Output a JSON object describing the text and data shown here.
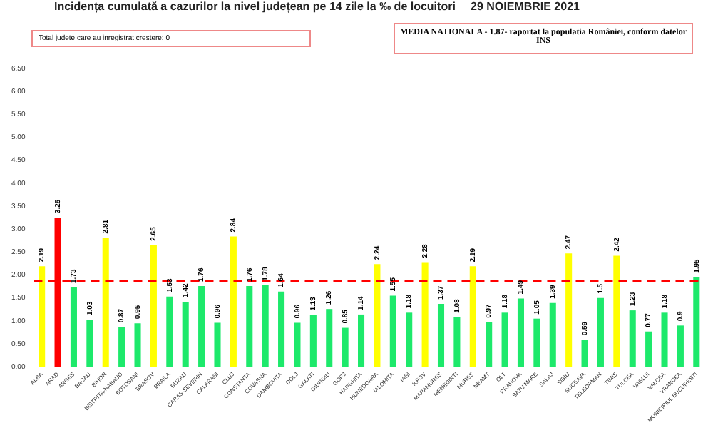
{
  "chart_data": {
    "type": "bar",
    "title": "Incidența cumulată a cazurilor la nivel județean pe 14 zile la ‰ de locuitori",
    "subtitle": "29 NOIEMBRIE 2021",
    "annotations": [
      "Total judete care au inregistrat crestere: 0",
      "MEDIA NATIONALA - 1.87-  raportat la populatia României, conform datelor INS"
    ],
    "categories": [
      "ALBA",
      "ARAD",
      "ARGES",
      "BACAU",
      "BIHOR",
      "BISTRITA-NASAUD",
      "BOTOSANI",
      "BRASOV",
      "BRAILA",
      "BUZAU",
      "CARAS-SEVERIN",
      "CALARASI",
      "CLUJ",
      "CONSTANTA",
      "COVASNA",
      "DAMBOVITA",
      "DOLJ",
      "GALATI",
      "GIURGIU",
      "GORJ",
      "HARGHITA",
      "HUNEDOARA",
      "IALOMITA",
      "IASI",
      "ILFOV",
      "MARAMURES",
      "MEHEDINTI",
      "MURES",
      "NEAMT",
      "OLT",
      "PRAHOVA",
      "SATU MARE",
      "SALAJ",
      "SIBIU",
      "SUCEAVA",
      "TELEORMAN",
      "TIMIS",
      "TULCEA",
      "VASLUI",
      "VALCEA",
      "VRANCEA",
      "MUNICIPIUL BUCURESTI"
    ],
    "values": [
      2.19,
      3.25,
      1.73,
      1.03,
      2.81,
      0.87,
      0.95,
      2.65,
      1.53,
      1.42,
      1.76,
      0.96,
      2.84,
      1.76,
      1.78,
      1.64,
      0.96,
      1.13,
      1.26,
      0.85,
      1.14,
      2.24,
      1.55,
      1.18,
      2.28,
      1.37,
      1.08,
      2.19,
      0.97,
      1.18,
      1.49,
      1.05,
      1.39,
      2.47,
      0.59,
      1.5,
      2.42,
      1.23,
      0.77,
      1.18,
      0.9,
      1.95
    ],
    "colors": [
      "#ffff00",
      "#ff0000",
      "#1de96b",
      "#1de96b",
      "#ffff00",
      "#1de96b",
      "#1de96b",
      "#ffff00",
      "#1de96b",
      "#1de96b",
      "#1de96b",
      "#1de96b",
      "#ffff00",
      "#1de96b",
      "#1de96b",
      "#1de96b",
      "#1de96b",
      "#1de96b",
      "#1de96b",
      "#1de96b",
      "#1de96b",
      "#ffff00",
      "#1de96b",
      "#1de96b",
      "#ffff00",
      "#1de96b",
      "#1de96b",
      "#ffff00",
      "#1de96b",
      "#1de96b",
      "#1de96b",
      "#1de96b",
      "#1de96b",
      "#ffff00",
      "#1de96b",
      "#1de96b",
      "#ffff00",
      "#1de96b",
      "#1de96b",
      "#1de96b",
      "#1de96b",
      "#1de96b"
    ],
    "ylim": [
      0,
      6.5
    ],
    "yticks": [
      {
        "value": 0,
        "label": "0.00"
      },
      {
        "value": 0.5,
        "label": "0.50"
      },
      {
        "value": 1,
        "label": "1.00"
      },
      {
        "value": 1.5,
        "label": "1.50"
      },
      {
        "value": 2,
        "label": "2.00"
      },
      {
        "value": 2.5,
        "label": "2.50"
      },
      {
        "value": 3,
        "label": "3.00"
      },
      {
        "value": 3.5,
        "label": "3.50"
      },
      {
        "value": 4,
        "label": "4.00"
      },
      {
        "value": 4.5,
        "label": "4.50"
      },
      {
        "value": 5,
        "label": "5.00"
      },
      {
        "value": 5.5,
        "label": "5.50"
      },
      {
        "value": 6,
        "label": "6.00"
      },
      {
        "value": 6.5,
        "label": "6.50"
      }
    ],
    "ref_lines": [
      {
        "axis": "y",
        "value": 1.87,
        "color": "#ff0000",
        "line_style": "dashed"
      }
    ],
    "data_labels": true,
    "grid": false,
    "legend": false
  }
}
